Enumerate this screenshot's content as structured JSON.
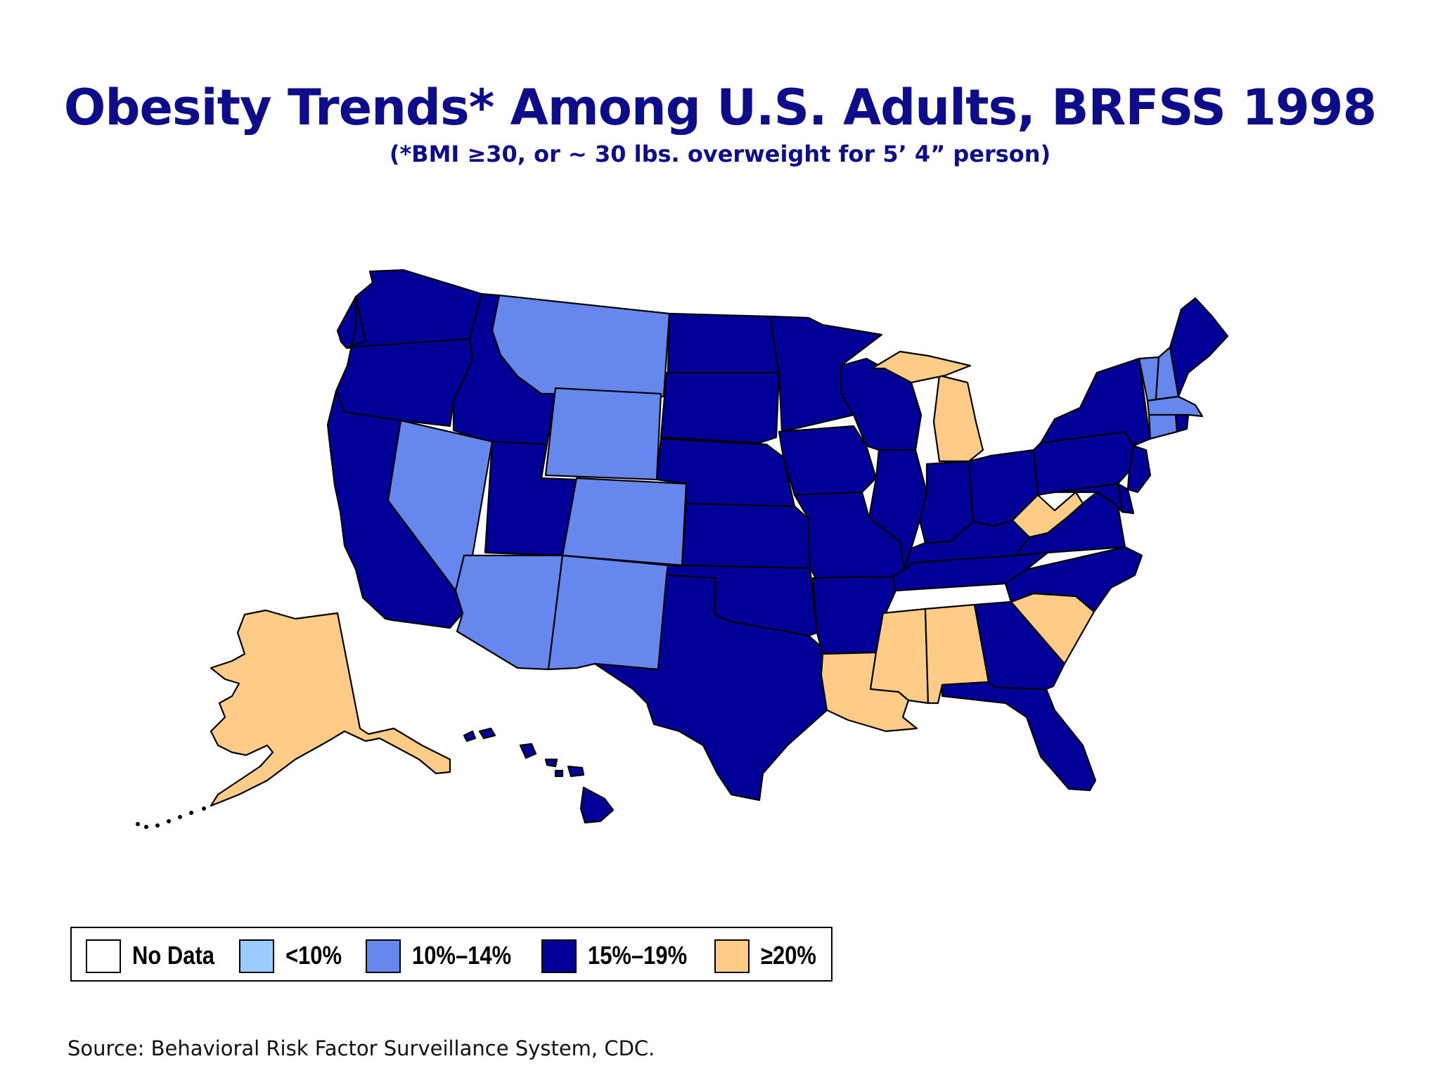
{
  "title": "Obesity Trends* Among U.S. Adults, BRFSS 1998",
  "subtitle": "(*BMI ≥30, or ~ 30 lbs. overweight for 5’ 4” person)",
  "source": "Source: Behavioral Risk Factor Surveillance System, CDC.",
  "legend": [
    {
      "label": "No Data",
      "color": "#ffffff"
    },
    {
      "label": "<10%",
      "color": "#99ccff"
    },
    {
      "label": "10%–14%",
      "color": "#6688ee"
    },
    {
      "label": "15%–19%",
      "color": "#000099"
    },
    {
      "label": "≥20%",
      "color": "#ffcc88"
    }
  ],
  "map_data": {
    "type": "choropleth",
    "colors": {
      "15-19": "#000099",
      "10-14": "#6688ee",
      "20+": "#ffcc88"
    },
    "states": {
      "WA": "15-19",
      "OR": "15-19",
      "CA": "15-19",
      "ID": "15-19",
      "UT": "15-19",
      "MT": "10-14",
      "WY": "10-14",
      "NV": "10-14",
      "CO": "10-14",
      "AZ": "10-14",
      "NM": "10-14",
      "ND": "15-19",
      "SD": "15-19",
      "NE": "15-19",
      "KS": "15-19",
      "OK": "15-19",
      "TX": "15-19",
      "MN": "15-19",
      "IA": "15-19",
      "MO": "15-19",
      "AR": "15-19",
      "LA": "20+",
      "WI": "15-19",
      "IL": "15-19",
      "MI": "20+",
      "IN": "15-19",
      "OH": "15-19",
      "KY": "15-19",
      "TN": "15-19",
      "MS": "20+",
      "AL": "20+",
      "GA": "15-19",
      "FL": "15-19",
      "SC": "20+",
      "NC": "15-19",
      "VA": "15-19",
      "WV": "20+",
      "PA": "15-19",
      "NY": "15-19",
      "NJ": "15-19",
      "DE": "15-19",
      "MD": "15-19",
      "VT": "10-14",
      "NH": "10-14",
      "MA": "10-14",
      "CT": "10-14",
      "RI": "15-19",
      "ME": "15-19",
      "AK": "20+",
      "HI": "15-19"
    }
  }
}
